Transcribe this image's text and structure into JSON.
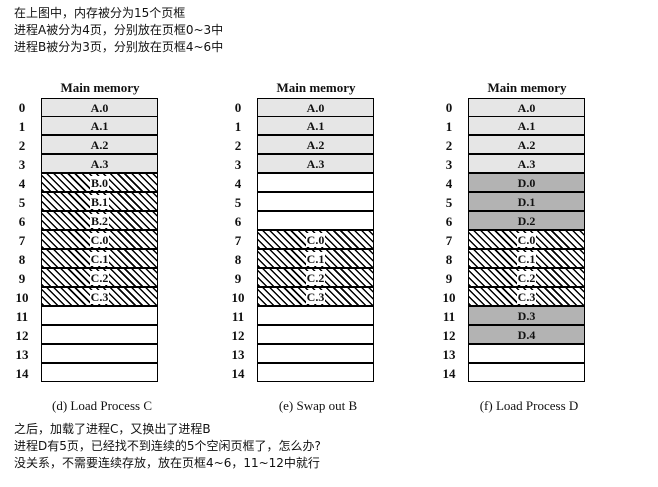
{
  "top_notes": [
    "在上图中，内存被分为15个页框",
    "进程A被分为4页，分别放在页框0~3中",
    "进程B被分为3页，分别放在页框4~6中"
  ],
  "bottom_notes": [
    "之后，加载了进程C，又换出了进程B",
    "进程D有5页，已经找不到连续的5个空闲页框了，怎么办?",
    "没关系，不需要连续存放，放在页框4~6，11~12中就行"
  ],
  "panels": [
    {
      "title": "Main memory",
      "caption": "(d) Load Process C",
      "frames": [
        {
          "index": "0",
          "label": "A.0",
          "fill": "light"
        },
        {
          "index": "1",
          "label": "A.1",
          "fill": "light"
        },
        {
          "index": "2",
          "label": "A.2",
          "fill": "light"
        },
        {
          "index": "3",
          "label": "A.3",
          "fill": "light"
        },
        {
          "index": "4",
          "label": "B.0",
          "fill": "hatch"
        },
        {
          "index": "5",
          "label": "B.1",
          "fill": "hatch"
        },
        {
          "index": "6",
          "label": "B.2",
          "fill": "hatch"
        },
        {
          "index": "7",
          "label": "C.0",
          "fill": "hatch"
        },
        {
          "index": "8",
          "label": "C.1",
          "fill": "hatch"
        },
        {
          "index": "9",
          "label": "C.2",
          "fill": "hatch"
        },
        {
          "index": "10",
          "label": "C.3",
          "fill": "hatch"
        },
        {
          "index": "11",
          "label": "",
          "fill": "empty"
        },
        {
          "index": "12",
          "label": "",
          "fill": "empty"
        },
        {
          "index": "13",
          "label": "",
          "fill": "empty"
        },
        {
          "index": "14",
          "label": "",
          "fill": "empty"
        }
      ]
    },
    {
      "title": "Main memory",
      "caption": "(e) Swap out B",
      "frames": [
        {
          "index": "0",
          "label": "A.0",
          "fill": "light"
        },
        {
          "index": "1",
          "label": "A.1",
          "fill": "light"
        },
        {
          "index": "2",
          "label": "A.2",
          "fill": "light"
        },
        {
          "index": "3",
          "label": "A.3",
          "fill": "light"
        },
        {
          "index": "4",
          "label": "",
          "fill": "empty"
        },
        {
          "index": "5",
          "label": "",
          "fill": "empty"
        },
        {
          "index": "6",
          "label": "",
          "fill": "empty"
        },
        {
          "index": "7",
          "label": "C.0",
          "fill": "hatch"
        },
        {
          "index": "8",
          "label": "C.1",
          "fill": "hatch"
        },
        {
          "index": "9",
          "label": "C.2",
          "fill": "hatch"
        },
        {
          "index": "10",
          "label": "C.3",
          "fill": "hatch"
        },
        {
          "index": "11",
          "label": "",
          "fill": "empty"
        },
        {
          "index": "12",
          "label": "",
          "fill": "empty"
        },
        {
          "index": "13",
          "label": "",
          "fill": "empty"
        },
        {
          "index": "14",
          "label": "",
          "fill": "empty"
        }
      ]
    },
    {
      "title": "Main memory",
      "caption": "(f) Load Process D",
      "frames": [
        {
          "index": "0",
          "label": "A.0",
          "fill": "light"
        },
        {
          "index": "1",
          "label": "A.1",
          "fill": "light"
        },
        {
          "index": "2",
          "label": "A.2",
          "fill": "light"
        },
        {
          "index": "3",
          "label": "A.3",
          "fill": "light"
        },
        {
          "index": "4",
          "label": "D.0",
          "fill": "dark"
        },
        {
          "index": "5",
          "label": "D.1",
          "fill": "dark"
        },
        {
          "index": "6",
          "label": "D.2",
          "fill": "dark"
        },
        {
          "index": "7",
          "label": "C.0",
          "fill": "hatch"
        },
        {
          "index": "8",
          "label": "C.1",
          "fill": "hatch"
        },
        {
          "index": "9",
          "label": "C.2",
          "fill": "hatch"
        },
        {
          "index": "10",
          "label": "C.3",
          "fill": "hatch"
        },
        {
          "index": "11",
          "label": "D.3",
          "fill": "dark"
        },
        {
          "index": "12",
          "label": "D.4",
          "fill": "dark"
        },
        {
          "index": "13",
          "label": "",
          "fill": "empty"
        },
        {
          "index": "14",
          "label": "",
          "fill": "empty"
        }
      ]
    }
  ]
}
